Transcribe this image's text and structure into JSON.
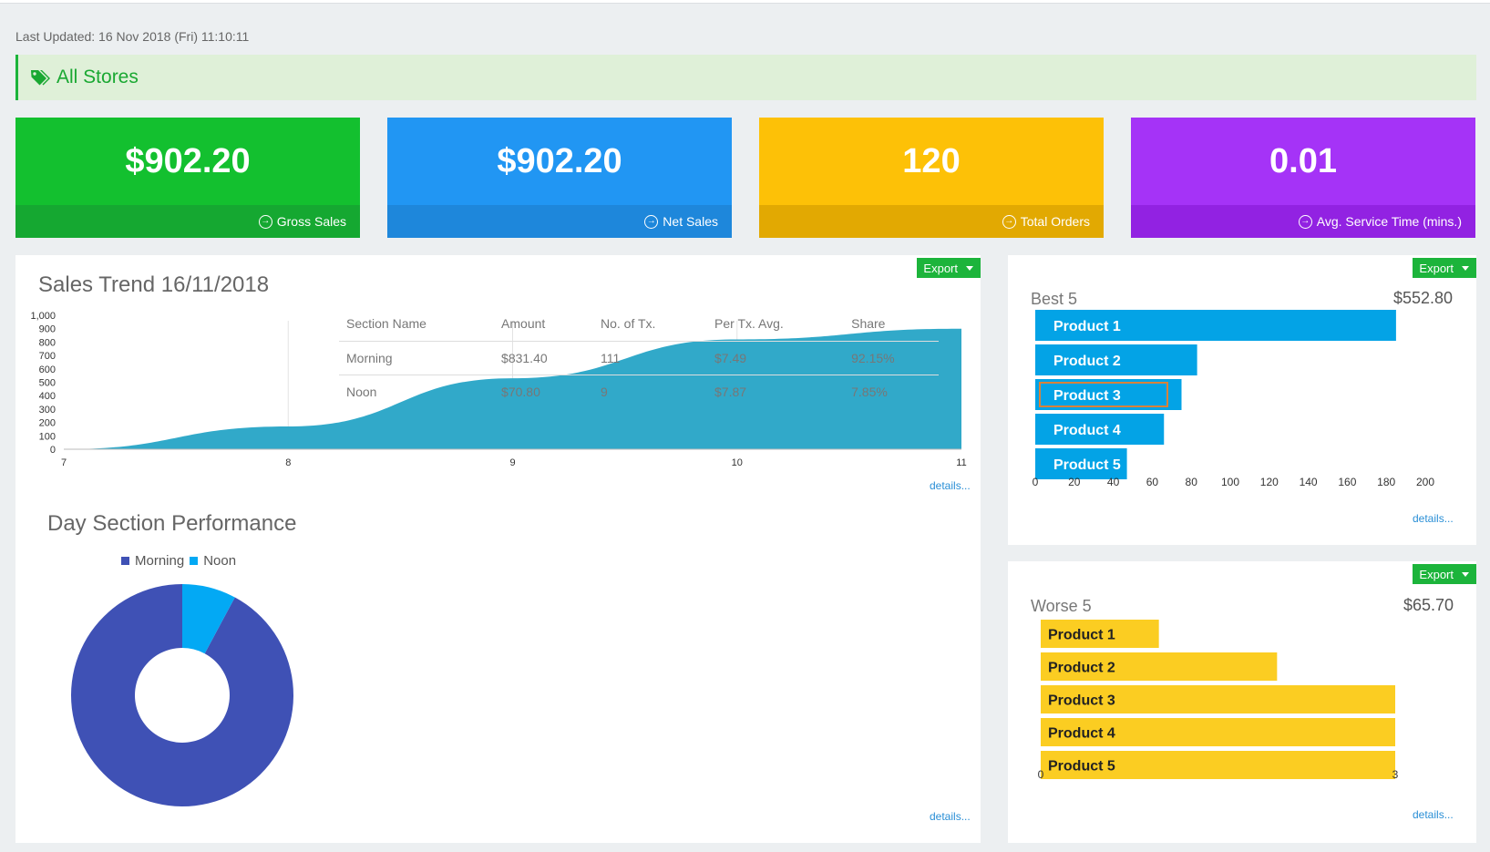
{
  "last_updated": "Last Updated: 16 Nov 2018 (Fri) 11:10:11",
  "store_filter": {
    "label": "All Stores",
    "icon": "tags-icon"
  },
  "tiles": [
    {
      "value": "$902.20",
      "label": "Gross Sales",
      "color": "#13c02f",
      "foot_color": "#15a831"
    },
    {
      "value": "$902.20",
      "label": "Net Sales",
      "color": "#2196f3",
      "foot_color": "#1e87db"
    },
    {
      "value": "120",
      "label": "Total Orders",
      "color": "#fdc107",
      "foot_color": "#e2a902"
    },
    {
      "value": "0.01",
      "label": "Avg. Service Time (mins.)",
      "color": "#a533f7",
      "foot_color": "#9222e2"
    }
  ],
  "export_label": "Export",
  "details_label": "details...",
  "sales_trend": {
    "title": "Sales Trend 16/11/2018",
    "chart_data": {
      "type": "area",
      "x": [
        7,
        8,
        9,
        10,
        11
      ],
      "y": [
        0,
        170,
        530,
        820,
        900
      ],
      "ylim": [
        0,
        1000
      ],
      "yticks": [
        "1,000",
        "900",
        "800",
        "700",
        "600",
        "500",
        "400",
        "300",
        "200",
        "100",
        "0"
      ],
      "xticks": [
        "7",
        "8",
        "9",
        "10",
        "11"
      ],
      "color": "#31a9c9"
    }
  },
  "day_section": {
    "title": "Day Section Performance",
    "legend": [
      {
        "name": "Morning",
        "color": "#3f51b5"
      },
      {
        "name": "Noon",
        "color": "#03a9f4"
      }
    ],
    "chart_data": {
      "type": "pie",
      "categories": [
        "Morning",
        "Noon"
      ],
      "values": [
        92.15,
        7.85
      ],
      "colors": [
        "#3f51b5",
        "#03a9f4"
      ]
    },
    "table": {
      "headers": [
        "Section Name",
        "Amount",
        "No. of Tx.",
        "Per Tx. Avg.",
        "Share"
      ],
      "rows": [
        [
          "Morning",
          "$831.40",
          "111",
          "$7.49",
          "92.15%"
        ],
        [
          "Noon",
          "$70.80",
          "9",
          "$7.87",
          "7.85%"
        ]
      ]
    }
  },
  "best5": {
    "title": "Best 5",
    "total": "$552.80",
    "chart_data": {
      "type": "bar",
      "categories": [
        "Product 1",
        "Product 2",
        "Product 3",
        "Product 4",
        "Product 5"
      ],
      "values": [
        185,
        83,
        75,
        66,
        47
      ],
      "xlim": [
        0,
        200
      ],
      "xticks": [
        "0",
        "20",
        "40",
        "60",
        "80",
        "100",
        "120",
        "140",
        "160",
        "180",
        "200"
      ],
      "color": "#03a3e6",
      "highlight_index": 2
    }
  },
  "worse5": {
    "title": "Worse 5",
    "total": "$65.70",
    "chart_data": {
      "type": "bar",
      "categories": [
        "Product 1",
        "Product 2",
        "Product 3",
        "Product 4",
        "Product 5"
      ],
      "values": [
        1,
        2,
        3,
        3,
        3
      ],
      "xlim": [
        0,
        3
      ],
      "xticks": [
        "0",
        "3"
      ],
      "color": "#fbcd22"
    }
  }
}
